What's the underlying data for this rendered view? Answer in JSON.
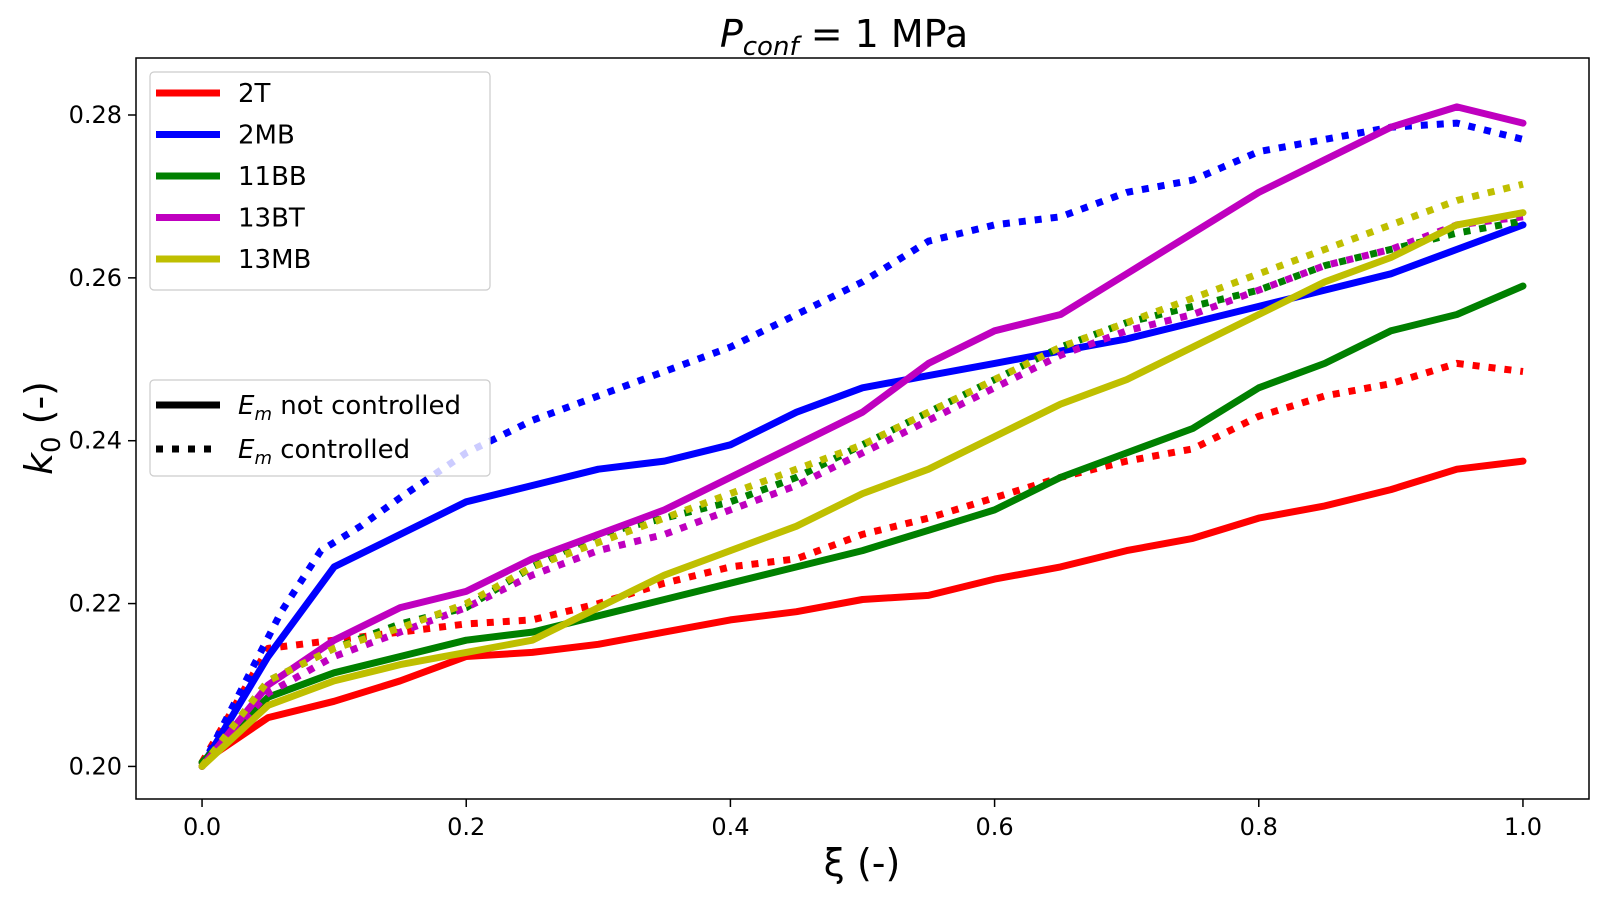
{
  "chart_data": {
    "type": "line",
    "title_main": "P",
    "title_sub": "conf",
    "title_rest": " = 1 MPa",
    "xlabel": "ξ (-)",
    "ylabel_main": "k",
    "ylabel_sub": "0",
    "ylabel_rest": " (-)",
    "xlim": [
      -0.05,
      1.05
    ],
    "ylim": [
      0.196,
      0.287
    ],
    "xticks": [
      0.0,
      0.2,
      0.4,
      0.6,
      0.8,
      1.0
    ],
    "xtick_labels": [
      "0.0",
      "0.2",
      "0.4",
      "0.6",
      "0.8",
      "1.0"
    ],
    "yticks": [
      0.2,
      0.22,
      0.24,
      0.26,
      0.28
    ],
    "ytick_labels": [
      "0.20",
      "0.22",
      "0.24",
      "0.26",
      "0.28"
    ],
    "legend_placement": "top-left",
    "style_legend": [
      {
        "style": "solid",
        "label_main": "E",
        "label_sub": "m",
        "label_rest": " not controlled"
      },
      {
        "style": "dotted",
        "label_main": "E",
        "label_sub": "m",
        "label_rest": " controlled"
      }
    ],
    "series": [
      {
        "name": "2T",
        "color": "#ff0000",
        "x_controlled": [
          0,
          0.05,
          0.1,
          0.15,
          0.2,
          0.25,
          0.3,
          0.35,
          0.4,
          0.45,
          0.5,
          0.55,
          0.6,
          0.65,
          0.7,
          0.75,
          0.8,
          0.85,
          0.9,
          0.95,
          1.0
        ],
        "x_not_controlled": [
          0,
          0.05,
          0.1,
          0.15,
          0.2,
          0.25,
          0.3,
          0.35,
          0.4,
          0.45,
          0.5,
          0.55,
          0.6,
          0.65,
          0.7,
          0.75,
          0.8,
          0.85,
          0.9,
          0.95,
          1.0
        ],
        "not_controlled": [
          0.2005,
          0.206,
          0.208,
          0.2105,
          0.2135,
          0.214,
          0.215,
          0.2165,
          0.218,
          0.219,
          0.2205,
          0.221,
          0.223,
          0.2245,
          0.2265,
          0.228,
          0.2305,
          0.232,
          0.234,
          0.2365,
          0.2375
        ],
        "controlled": [
          0.2005,
          0.2145,
          0.2155,
          0.2165,
          0.2175,
          0.218,
          0.22,
          0.2225,
          0.2245,
          0.2255,
          0.2285,
          0.2305,
          0.233,
          0.2355,
          0.2375,
          0.239,
          0.243,
          0.2455,
          0.247,
          0.2495,
          0.2485
        ]
      },
      {
        "name": "2MB",
        "color": "#0000ff",
        "x_controlled": [
          0,
          0.03,
          0.06,
          0.09,
          0.12,
          0.15,
          0.2,
          0.25,
          0.3,
          0.35,
          0.4,
          0.45,
          0.5,
          0.55,
          0.6,
          0.65,
          0.7,
          0.75,
          0.8,
          0.85,
          0.9,
          0.95,
          1.0
        ],
        "x_not_controlled": [
          0,
          0.05,
          0.1,
          0.15,
          0.2,
          0.25,
          0.3,
          0.35,
          0.4,
          0.45,
          0.5,
          0.55,
          0.6,
          0.65,
          0.7,
          0.75,
          0.8,
          0.85,
          0.9,
          0.95,
          1.0
        ],
        "not_controlled": [
          0.2,
          0.2135,
          0.2245,
          0.2285,
          0.2325,
          0.2345,
          0.2365,
          0.2375,
          0.2395,
          0.2435,
          0.2465,
          0.248,
          0.2495,
          0.251,
          0.2525,
          0.2545,
          0.2565,
          0.2585,
          0.2605,
          0.2635,
          0.2665
        ],
        "controlled": [
          0.2,
          0.2095,
          0.219,
          0.2265,
          0.2295,
          0.233,
          0.2385,
          0.2425,
          0.2455,
          0.2485,
          0.2515,
          0.2555,
          0.2595,
          0.2645,
          0.2665,
          0.2675,
          0.2705,
          0.272,
          0.2755,
          0.277,
          0.2785,
          0.279,
          0.277
        ]
      },
      {
        "name": "11BB",
        "color": "#008000",
        "x_controlled": [
          0,
          0.05,
          0.1,
          0.15,
          0.2,
          0.25,
          0.3,
          0.35,
          0.4,
          0.45,
          0.5,
          0.55,
          0.6,
          0.65,
          0.7,
          0.75,
          0.8,
          0.85,
          0.9,
          0.95,
          1.0
        ],
        "x_not_controlled": [
          0,
          0.05,
          0.1,
          0.15,
          0.2,
          0.25,
          0.3,
          0.35,
          0.4,
          0.45,
          0.5,
          0.55,
          0.6,
          0.65,
          0.7,
          0.75,
          0.8,
          0.85,
          0.9,
          0.95,
          1.0
        ],
        "not_controlled": [
          0.2005,
          0.2085,
          0.2115,
          0.2135,
          0.2155,
          0.2165,
          0.2185,
          0.2205,
          0.2225,
          0.2245,
          0.2265,
          0.229,
          0.2315,
          0.2355,
          0.2385,
          0.2415,
          0.2465,
          0.2495,
          0.2535,
          0.2555,
          0.259
        ],
        "controlled": [
          0.2,
          0.2105,
          0.2145,
          0.2175,
          0.2195,
          0.2245,
          0.2285,
          0.2305,
          0.2325,
          0.2355,
          0.2395,
          0.2435,
          0.2475,
          0.2515,
          0.2545,
          0.2565,
          0.2585,
          0.2615,
          0.2635,
          0.2655,
          0.267
        ]
      },
      {
        "name": "13BT",
        "color": "#bf00bf",
        "x_controlled": [
          0,
          0.05,
          0.1,
          0.15,
          0.2,
          0.25,
          0.3,
          0.35,
          0.4,
          0.45,
          0.5,
          0.55,
          0.6,
          0.65,
          0.7,
          0.75,
          0.8,
          0.85,
          0.9,
          0.95,
          1.0
        ],
        "x_not_controlled": [
          0,
          0.05,
          0.1,
          0.15,
          0.2,
          0.25,
          0.3,
          0.35,
          0.4,
          0.45,
          0.5,
          0.55,
          0.6,
          0.65,
          0.7,
          0.75,
          0.8,
          0.85,
          0.9,
          0.95,
          1.0
        ],
        "not_controlled": [
          0.2,
          0.21,
          0.2155,
          0.2195,
          0.2215,
          0.2255,
          0.2285,
          0.2315,
          0.2355,
          0.2395,
          0.2435,
          0.2495,
          0.2535,
          0.2555,
          0.2605,
          0.2655,
          0.2705,
          0.2745,
          0.2785,
          0.281,
          0.279
        ],
        "controlled": [
          0.2,
          0.209,
          0.2135,
          0.2165,
          0.2195,
          0.2235,
          0.2265,
          0.2285,
          0.2315,
          0.2345,
          0.2385,
          0.2425,
          0.2465,
          0.2505,
          0.2535,
          0.2555,
          0.2585,
          0.2615,
          0.2635,
          0.2665,
          0.2675
        ]
      },
      {
        "name": "13MB",
        "color": "#bfbf00",
        "x_controlled": [
          0,
          0.05,
          0.1,
          0.15,
          0.2,
          0.25,
          0.3,
          0.35,
          0.4,
          0.45,
          0.5,
          0.55,
          0.6,
          0.65,
          0.7,
          0.75,
          0.8,
          0.85,
          0.9,
          0.95,
          1.0
        ],
        "x_not_controlled": [
          0,
          0.05,
          0.1,
          0.15,
          0.2,
          0.25,
          0.3,
          0.35,
          0.4,
          0.45,
          0.5,
          0.55,
          0.6,
          0.65,
          0.7,
          0.75,
          0.8,
          0.85,
          0.9,
          0.95,
          1.0
        ],
        "not_controlled": [
          0.2,
          0.2075,
          0.2105,
          0.2125,
          0.214,
          0.2155,
          0.2195,
          0.2235,
          0.2265,
          0.2295,
          0.2335,
          0.2365,
          0.2405,
          0.2445,
          0.2475,
          0.2515,
          0.2555,
          0.2595,
          0.2625,
          0.2665,
          0.268
        ],
        "controlled": [
          0.2,
          0.2105,
          0.2145,
          0.217,
          0.22,
          0.2245,
          0.2275,
          0.2305,
          0.2335,
          0.2365,
          0.2395,
          0.2435,
          0.2475,
          0.2515,
          0.2545,
          0.2575,
          0.2605,
          0.2635,
          0.2665,
          0.2695,
          0.2715
        ]
      }
    ]
  }
}
